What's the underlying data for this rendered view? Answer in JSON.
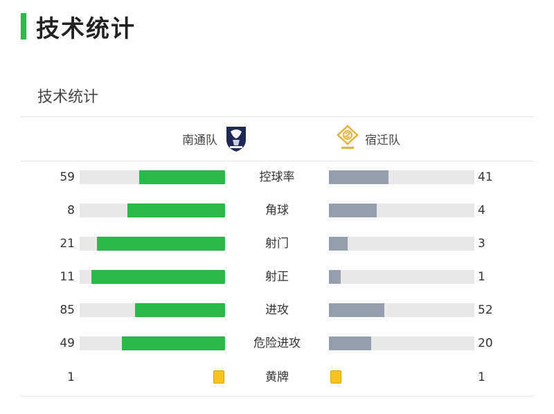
{
  "page_title": "技术统计",
  "card": {
    "title": "技术统计"
  },
  "teams": {
    "home": {
      "name": "南通队",
      "logo_icon": "nantong-crest-icon"
    },
    "away": {
      "name": "宿迁队",
      "logo_icon": "suqian-crest-icon"
    }
  },
  "colors": {
    "accent": "#2db84a",
    "home_bar": "#2db84a",
    "away_bar": "#959fb0",
    "track": "#e8e8e8",
    "yellow_card": "#f8c31b"
  },
  "stats": [
    {
      "label": "控球率",
      "home": "59",
      "away": "41",
      "home_fraction": 0.59,
      "away_fraction": 0.41
    },
    {
      "label": "角球",
      "home": "8",
      "away": "4",
      "home_fraction": 0.67,
      "away_fraction": 0.33
    },
    {
      "label": "射门",
      "home": "21",
      "away": "3",
      "home_fraction": 0.88,
      "away_fraction": 0.13
    },
    {
      "label": "射正",
      "home": "11",
      "away": "1",
      "home_fraction": 0.92,
      "away_fraction": 0.08
    },
    {
      "label": "进攻",
      "home": "85",
      "away": "52",
      "home_fraction": 0.62,
      "away_fraction": 0.38
    },
    {
      "label": "危险进攻",
      "home": "49",
      "away": "20",
      "home_fraction": 0.71,
      "away_fraction": 0.29
    }
  ],
  "yellow_cards": {
    "label": "黄牌",
    "home": "1",
    "away": "1",
    "icon": "yellow-card-icon"
  }
}
